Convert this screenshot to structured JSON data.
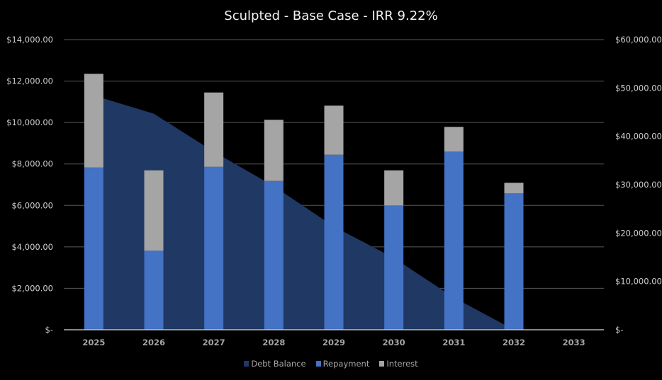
{
  "chart_data": {
    "type": "bar",
    "title": "Sculpted - Base Case - IRR 9.22%",
    "categories": [
      "2025",
      "2026",
      "2027",
      "2028",
      "2029",
      "2030",
      "2031",
      "2032",
      "2033"
    ],
    "series": [
      {
        "name": "Debt Balance",
        "type": "area",
        "axis": "right",
        "color": "#203864",
        "values": [
          48440,
          44680,
          36830,
          29690,
          21340,
          14850,
          6660,
          0,
          null
        ]
      },
      {
        "name": "Repayment",
        "type": "stacked-bar",
        "axis": "left",
        "color": "#4472C4",
        "values": [
          7830,
          3814,
          7864,
          7181,
          8444,
          6000,
          8595,
          6580,
          0
        ]
      },
      {
        "name": "Interest",
        "type": "stacked-bar",
        "axis": "left",
        "color": "#A5A5A5",
        "values": [
          4521,
          3879,
          3585,
          2950,
          2370,
          1693,
          1195,
          512,
          0
        ]
      }
    ],
    "y_left": {
      "range": [
        0,
        14000
      ],
      "ticks": [
        "$-",
        "$2,000.00",
        "$4,000.00",
        "$6,000.00",
        "$8,000.00",
        "$10,000.00",
        "$12,000.00",
        "$14,000.00"
      ],
      "tick_values": [
        0,
        2000,
        4000,
        6000,
        8000,
        10000,
        12000,
        14000
      ]
    },
    "y_right": {
      "range": [
        0,
        60000
      ],
      "ticks": [
        "$-",
        "$10,000.00",
        "$20,000.00",
        "$30,000.00",
        "$40,000.00",
        "$50,000.00",
        "$60,000.00"
      ],
      "tick_values": [
        0,
        10000,
        20000,
        30000,
        40000,
        50000,
        60000
      ]
    },
    "xlabel": "",
    "ylabel": "",
    "grid": true,
    "legend_position": "bottom",
    "background": "#000000",
    "gridline_color": "#595959"
  }
}
